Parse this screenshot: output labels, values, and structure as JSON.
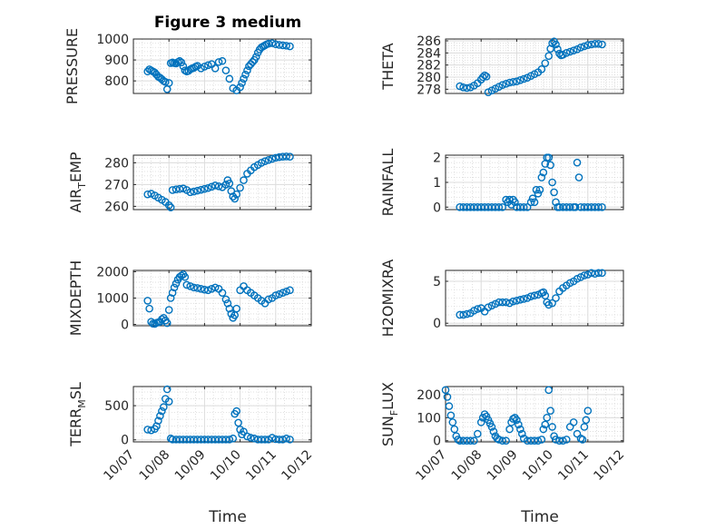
{
  "figure": {
    "title": "Figure 3 medium",
    "marker_color": "#0072BD",
    "grid": true,
    "xlabel": "Time",
    "time_ticks": [
      "10/07",
      "10/08",
      "10/09",
      "10/10",
      "10/11",
      "10/12"
    ]
  },
  "chart_data": [
    {
      "type": "scatter",
      "ylabel": "PRESSURE",
      "yticks": [
        "800",
        "900",
        "1000"
      ],
      "ylim": [
        740,
        1000
      ],
      "series": [
        {
          "x": [
            0.4,
            0.45,
            0.5,
            0.55,
            0.6,
            0.65,
            0.7,
            0.75,
            0.8,
            0.85,
            0.9,
            0.95,
            1.0,
            1.05,
            1.1,
            1.15,
            1.2,
            1.25,
            1.3,
            1.35,
            1.4,
            1.45,
            1.5,
            1.55,
            1.6,
            1.65,
            1.7,
            1.75,
            1.8,
            1.9,
            2.0,
            2.1,
            2.2,
            2.3,
            2.4,
            2.5,
            2.6,
            2.7,
            2.8,
            2.9,
            3.0,
            3.05,
            3.1,
            3.15,
            3.2,
            3.25,
            3.3,
            3.35,
            3.4,
            3.45,
            3.5,
            3.55,
            3.6,
            3.65,
            3.7,
            3.75,
            3.8,
            3.9,
            4.0,
            4.1,
            4.2,
            4.3,
            4.4
          ],
          "y": [
            845,
            855,
            850,
            845,
            840,
            830,
            820,
            815,
            808,
            800,
            795,
            760,
            790,
            885,
            888,
            885,
            883,
            890,
            895,
            888,
            870,
            850,
            845,
            848,
            855,
            860,
            862,
            868,
            872,
            860,
            868,
            875,
            880,
            860,
            890,
            895,
            850,
            810,
            765,
            755,
            770,
            790,
            810,
            830,
            850,
            870,
            880,
            890,
            900,
            915,
            935,
            950,
            960,
            965,
            970,
            975,
            978,
            980,
            975,
            972,
            970,
            968,
            965
          ]
        }
      ]
    },
    {
      "type": "scatter",
      "ylabel": "THETA",
      "yticks": [
        "278",
        "280",
        "282",
        "284",
        "286"
      ],
      "ylim": [
        277.3,
        286.3
      ],
      "series": [
        {
          "x": [
            0.4,
            0.5,
            0.6,
            0.7,
            0.8,
            0.9,
            1.0,
            1.05,
            1.1,
            1.15,
            1.2,
            1.3,
            1.4,
            1.5,
            1.6,
            1.7,
            1.8,
            1.9,
            2.0,
            2.1,
            2.2,
            2.3,
            2.4,
            2.5,
            2.6,
            2.7,
            2.8,
            2.9,
            2.95,
            3.0,
            3.05,
            3.1,
            3.15,
            3.2,
            3.25,
            3.3,
            3.4,
            3.5,
            3.6,
            3.7,
            3.8,
            3.9,
            4.0,
            4.1,
            4.2,
            4.3,
            4.4
          ],
          "y": [
            278.5,
            278.3,
            278.2,
            278.3,
            278.6,
            279,
            279.6,
            280,
            280.3,
            280.1,
            277.5,
            277.8,
            278.1,
            278.4,
            278.7,
            278.9,
            279.1,
            279.2,
            279.3,
            279.5,
            279.7,
            279.9,
            280.2,
            280.5,
            280.8,
            281.3,
            282.3,
            283.5,
            284.7,
            285.6,
            285.9,
            285.4,
            284.6,
            283.9,
            283.6,
            283.7,
            284,
            284.2,
            284.4,
            284.6,
            284.9,
            285.1,
            285.3,
            285.4,
            285.5,
            285.5,
            285.4
          ]
        }
      ]
    },
    {
      "type": "scatter",
      "ylabel": "AIR_TEMP",
      "ylabel_main": "AIR",
      "ylabel_sub": "T",
      "ylabel_tail": "EMP",
      "yticks": [
        "260",
        "270",
        "280"
      ],
      "ylim": [
        258.5,
        283.5
      ],
      "series": [
        {
          "x": [
            0.4,
            0.5,
            0.6,
            0.7,
            0.8,
            0.9,
            1.0,
            1.05,
            1.1,
            1.2,
            1.3,
            1.4,
            1.5,
            1.6,
            1.7,
            1.8,
            1.9,
            2.0,
            2.1,
            2.2,
            2.3,
            2.4,
            2.5,
            2.6,
            2.65,
            2.7,
            2.75,
            2.8,
            2.85,
            2.9,
            3.0,
            3.1,
            3.2,
            3.3,
            3.4,
            3.5,
            3.6,
            3.7,
            3.8,
            3.9,
            4.0,
            4.1,
            4.2,
            4.3,
            4.4
          ],
          "y": [
            265.5,
            265.8,
            265,
            264,
            263,
            262,
            260.5,
            259.5,
            267.5,
            267.8,
            268,
            268.2,
            267.5,
            266.5,
            266.8,
            267.2,
            267.6,
            268,
            268.4,
            269,
            269.6,
            269.2,
            268.8,
            270,
            272,
            270.5,
            267,
            264.5,
            263.5,
            265.5,
            268.5,
            272,
            275,
            276.5,
            278,
            279,
            280,
            280.7,
            281.3,
            281.8,
            282.3,
            282.6,
            282.8,
            282.9,
            282.8
          ]
        }
      ]
    },
    {
      "type": "scatter",
      "ylabel": "RAINFALL",
      "yticks": [
        "0",
        "1",
        "2"
      ],
      "ylim": [
        -0.1,
        2.1
      ],
      "series": [
        {
          "x": [
            0.4,
            0.5,
            0.6,
            0.7,
            0.8,
            0.9,
            1.0,
            1.1,
            1.2,
            1.3,
            1.4,
            1.5,
            1.6,
            1.7,
            1.75,
            1.8,
            1.85,
            1.9,
            1.95,
            2.0,
            2.1,
            2.2,
            2.3,
            2.4,
            2.45,
            2.5,
            2.55,
            2.6,
            2.65,
            2.7,
            2.75,
            2.8,
            2.85,
            2.9,
            2.95,
            3.0,
            3.05,
            3.1,
            3.15,
            3.2,
            3.3,
            3.4,
            3.5,
            3.6,
            3.65,
            3.7,
            3.75,
            3.8,
            3.9,
            4.0,
            4.1,
            4.2,
            4.3,
            4.4
          ],
          "y": [
            0,
            0,
            0,
            0,
            0,
            0,
            0,
            0,
            0,
            0,
            0,
            0,
            0,
            0.3,
            0.2,
            0.3,
            0.1,
            0.3,
            0.2,
            0,
            0,
            0,
            0,
            0.2,
            0.35,
            0.2,
            0.7,
            0.55,
            0.7,
            1.2,
            1.4,
            1.75,
            2.0,
            2.0,
            1.7,
            1.0,
            0.6,
            0.2,
            0,
            0,
            0,
            0,
            0,
            0,
            0,
            1.8,
            1.2,
            0,
            0,
            0,
            0,
            0,
            0,
            0
          ]
        }
      ]
    },
    {
      "type": "scatter",
      "ylabel": "MIXDEPTH",
      "yticks": [
        "0",
        "1000",
        "2000"
      ],
      "ylim": [
        -50,
        2050
      ],
      "series": [
        {
          "x": [
            0.4,
            0.45,
            0.5,
            0.55,
            0.6,
            0.65,
            0.7,
            0.75,
            0.8,
            0.85,
            0.9,
            0.95,
            1.0,
            1.05,
            1.1,
            1.15,
            1.2,
            1.25,
            1.3,
            1.35,
            1.4,
            1.45,
            1.5,
            1.6,
            1.7,
            1.8,
            1.9,
            2.0,
            2.1,
            2.2,
            2.3,
            2.4,
            2.5,
            2.6,
            2.65,
            2.7,
            2.75,
            2.8,
            2.85,
            2.9,
            3.0,
            3.1,
            3.2,
            3.3,
            3.4,
            3.5,
            3.6,
            3.7,
            3.8,
            3.9,
            4.0,
            4.1,
            4.2,
            4.3,
            4.4
          ],
          "y": [
            900,
            600,
            100,
            30,
            20,
            60,
            80,
            100,
            200,
            250,
            150,
            50,
            550,
            1000,
            1200,
            1400,
            1550,
            1700,
            1800,
            1850,
            1900,
            1800,
            1500,
            1450,
            1400,
            1380,
            1350,
            1320,
            1300,
            1350,
            1400,
            1350,
            1200,
            950,
            800,
            600,
            400,
            250,
            350,
            600,
            1300,
            1450,
            1300,
            1200,
            1100,
            1000,
            900,
            800,
            950,
            1000,
            1100,
            1150,
            1200,
            1250,
            1300
          ]
        }
      ]
    },
    {
      "type": "scatter",
      "ylabel": "H2OMIXRA",
      "yticks": [
        "0",
        "5"
      ],
      "ylim": [
        -0.3,
        6.3
      ],
      "series": [
        {
          "x": [
            0.4,
            0.5,
            0.6,
            0.7,
            0.8,
            0.9,
            1.0,
            1.1,
            1.2,
            1.3,
            1.4,
            1.5,
            1.6,
            1.7,
            1.8,
            1.9,
            2.0,
            2.1,
            2.2,
            2.3,
            2.4,
            2.5,
            2.6,
            2.7,
            2.75,
            2.8,
            2.85,
            2.9,
            3.0,
            3.1,
            3.2,
            3.3,
            3.4,
            3.5,
            3.6,
            3.7,
            3.8,
            3.9,
            4.0,
            4.1,
            4.2,
            4.3,
            4.4
          ],
          "y": [
            1.0,
            1.0,
            1.1,
            1.2,
            1.5,
            1.7,
            1.8,
            1.4,
            1.9,
            2.1,
            2.3,
            2.5,
            2.5,
            2.5,
            2.4,
            2.6,
            2.7,
            2.8,
            2.9,
            3.0,
            3.2,
            3.3,
            3.4,
            3.6,
            3.7,
            3.3,
            2.5,
            2.2,
            2.4,
            3.0,
            3.8,
            4.2,
            4.5,
            4.8,
            5.0,
            5.3,
            5.5,
            5.7,
            5.8,
            6.0,
            5.9,
            6.0,
            6.0
          ]
        }
      ]
    },
    {
      "type": "scatter",
      "ylabel": "TERR_MSL",
      "ylabel_main": "TERR",
      "ylabel_sub": "M",
      "ylabel_tail": "SL",
      "yticks": [
        "0",
        "500"
      ],
      "ylim": [
        -30,
        780
      ],
      "series": [
        {
          "x": [
            0.4,
            0.5,
            0.6,
            0.65,
            0.7,
            0.75,
            0.8,
            0.85,
            0.9,
            0.95,
            1.0,
            1.05,
            1.1,
            1.2,
            1.3,
            1.4,
            1.5,
            1.6,
            1.7,
            1.8,
            1.9,
            2.0,
            2.1,
            2.2,
            2.3,
            2.4,
            2.5,
            2.6,
            2.7,
            2.8,
            2.85,
            2.9,
            2.95,
            3.0,
            3.05,
            3.1,
            3.2,
            3.3,
            3.4,
            3.5,
            3.6,
            3.7,
            3.8,
            3.9,
            4.0,
            4.1,
            4.2,
            4.3,
            4.4
          ],
          "y": [
            150,
            140,
            160,
            200,
            280,
            350,
            420,
            480,
            600,
            740,
            560,
            20,
            5,
            5,
            5,
            5,
            5,
            5,
            5,
            5,
            5,
            5,
            5,
            5,
            5,
            5,
            5,
            5,
            5,
            20,
            380,
            420,
            250,
            150,
            80,
            120,
            50,
            30,
            20,
            5,
            5,
            5,
            5,
            30,
            10,
            5,
            5,
            20,
            5
          ]
        }
      ]
    },
    {
      "type": "scatter",
      "ylabel": "SUN_FLUX",
      "ylabel_main": "SUN",
      "ylabel_sub": "F",
      "ylabel_tail": "LUX",
      "yticks": [
        "0",
        "100",
        "200"
      ],
      "ylim": [
        -5,
        235
      ],
      "series": [
        {
          "x": [
            0.0,
            0.05,
            0.1,
            0.15,
            0.2,
            0.25,
            0.3,
            0.35,
            0.4,
            0.5,
            0.6,
            0.7,
            0.8,
            0.9,
            1.0,
            1.05,
            1.1,
            1.15,
            1.2,
            1.25,
            1.3,
            1.35,
            1.4,
            1.45,
            1.5,
            1.6,
            1.7,
            1.8,
            1.85,
            1.9,
            1.95,
            2.0,
            2.05,
            2.1,
            2.15,
            2.2,
            2.3,
            2.4,
            2.5,
            2.6,
            2.7,
            2.75,
            2.8,
            2.85,
            2.9,
            2.95,
            3.0,
            3.05,
            3.1,
            3.2,
            3.3,
            3.4,
            3.5,
            3.6,
            3.7,
            3.8,
            3.85,
            3.9,
            3.95,
            4.0
          ],
          "y": [
            220,
            190,
            150,
            110,
            80,
            50,
            20,
            5,
            0,
            0,
            0,
            0,
            0,
            30,
            80,
            100,
            115,
            105,
            90,
            75,
            60,
            40,
            20,
            10,
            5,
            0,
            0,
            50,
            80,
            95,
            100,
            90,
            70,
            50,
            30,
            10,
            0,
            0,
            0,
            0,
            5,
            50,
            70,
            100,
            220,
            130,
            60,
            20,
            5,
            0,
            0,
            5,
            60,
            80,
            30,
            10,
            5,
            60,
            90,
            130
          ]
        }
      ]
    }
  ]
}
